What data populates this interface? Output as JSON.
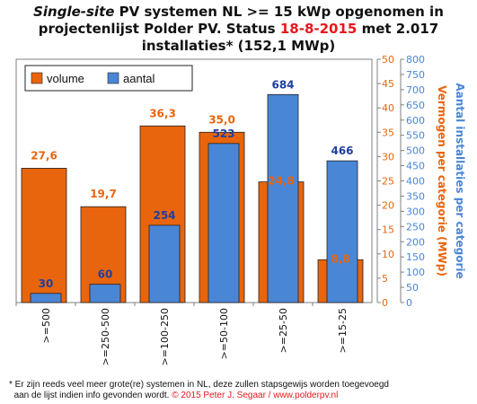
{
  "title": {
    "part1_italic": "Single-site",
    "part2": " PV systemen NL >= 15 kWp opgenomen in projectenlijst Polder PV. Status ",
    "date": "18-8-2015",
    "part3": " met 2.017 installaties* (152,1 MWp)"
  },
  "footnote": {
    "line1": "* Er zijn reeds veel meer grote(re) systemen in NL, deze zullen stapsgewijs worden toegevoegd",
    "line2_prefix": "aan de lijst indien info gevonden wordt. ",
    "line2_copyright": "© 2015 Peter J. Segaar / www.polderpv.nl"
  },
  "chart_data": {
    "type": "bar",
    "categories": [
      ">=500",
      ">=250-500",
      ">=100-250",
      ">=50-100",
      ">=25-50",
      ">=15-25"
    ],
    "series": [
      {
        "name": "volume",
        "axis": "right-inner",
        "color": "#e8650d",
        "value_labels": [
          "27,6",
          "19,7",
          "36,3",
          "35,0",
          "24,8",
          "8,8"
        ],
        "values": [
          27.6,
          19.7,
          36.3,
          35.0,
          24.8,
          8.8
        ]
      },
      {
        "name": "aantal",
        "axis": "right-outer",
        "color": "#4a86d6",
        "value_labels": [
          "30",
          "60",
          "254",
          "523",
          "684",
          "466"
        ],
        "values": [
          30,
          60,
          254,
          523,
          684,
          466
        ]
      }
    ],
    "axes": {
      "volume": {
        "label": "Vermogen per categorie (MWp)",
        "ylim": [
          0,
          50
        ],
        "ticks": [
          0,
          5,
          10,
          15,
          20,
          25,
          30,
          35,
          40,
          45,
          50
        ],
        "color": "#e8650d"
      },
      "aantal": {
        "label": "Aantal installaties per categorie",
        "ylim": [
          0,
          800
        ],
        "ticks": [
          0,
          50,
          100,
          150,
          200,
          250,
          300,
          350,
          400,
          450,
          500,
          550,
          600,
          650,
          700,
          750,
          800
        ],
        "color": "#4a86d6"
      }
    },
    "legend": {
      "placement": "top-left",
      "entries": [
        "volume",
        "aantal"
      ]
    },
    "grid": false,
    "background": "#ffffff"
  }
}
